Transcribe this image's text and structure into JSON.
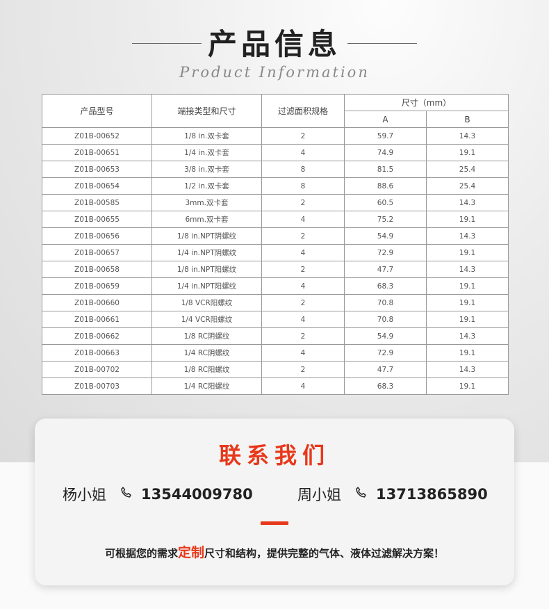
{
  "header": {
    "title": "产品信息",
    "subtitle": "Product Information"
  },
  "table": {
    "headers": {
      "model": "产品型号",
      "connection": "端接类型和尺寸",
      "filter_area": "过滤面积规格",
      "size": "尺寸（mm）",
      "a": "A",
      "b": "B"
    },
    "rows": [
      [
        "Z01B-00652",
        "1/8 in.双卡套",
        "2",
        "59.7",
        "14.3"
      ],
      [
        "Z01B-00651",
        "1/4 in.双卡套",
        "4",
        "74.9",
        "19.1"
      ],
      [
        "Z01B-00653",
        "3/8 in.双卡套",
        "8",
        "81.5",
        "25.4"
      ],
      [
        "Z01B-00654",
        "1/2 in.双卡套",
        "8",
        "88.6",
        "25.4"
      ],
      [
        "Z01B-00585",
        "3mm.双卡套",
        "2",
        "60.5",
        "14.3"
      ],
      [
        "Z01B-00655",
        "6mm.双卡套",
        "4",
        "75.2",
        "19.1"
      ],
      [
        "Z01B-00656",
        "1/8 in.NPT阴螺纹",
        "2",
        "54.9",
        "14.3"
      ],
      [
        "Z01B-00657",
        "1/4 in.NPT阴螺纹",
        "4",
        "72.9",
        "19.1"
      ],
      [
        "Z01B-00658",
        "1/8 in.NPT阳螺纹",
        "2",
        "47.7",
        "14.3"
      ],
      [
        "Z01B-00659",
        "1/4 in.NPT阳螺纹",
        "4",
        "68.3",
        "19.1"
      ],
      [
        "Z01B-00660",
        "1/8 VCR阳螺纹",
        "2",
        "70.8",
        "19.1"
      ],
      [
        "Z01B-00661",
        "1/4 VCR阳螺纹",
        "4",
        "70.8",
        "19.1"
      ],
      [
        "Z01B-00662",
        "1/8 RC阴螺纹",
        "2",
        "54.9",
        "14.3"
      ],
      [
        "Z01B-00663",
        "1/4 RC阴螺纹",
        "4",
        "72.9",
        "19.1"
      ],
      [
        "Z01B-00702",
        "1/8 RC阳螺纹",
        "2",
        "47.7",
        "14.3"
      ],
      [
        "Z01B-00703",
        "1/4 RC阳螺纹",
        "4",
        "68.3",
        "19.1"
      ]
    ]
  },
  "contact": {
    "title": "联系我们",
    "people": [
      {
        "name": "杨小姐",
        "phone": "13544009780",
        "icon": "phone-icon"
      },
      {
        "name": "周小姐",
        "phone": "13713865890",
        "icon": "phone-icon"
      }
    ],
    "slogan_pre": "可根据您的需求",
    "slogan_highlight": "定制",
    "slogan_post": "尺寸和结构，提供完整的气体、液体过滤解决方案！",
    "accent": "#e8381b"
  }
}
